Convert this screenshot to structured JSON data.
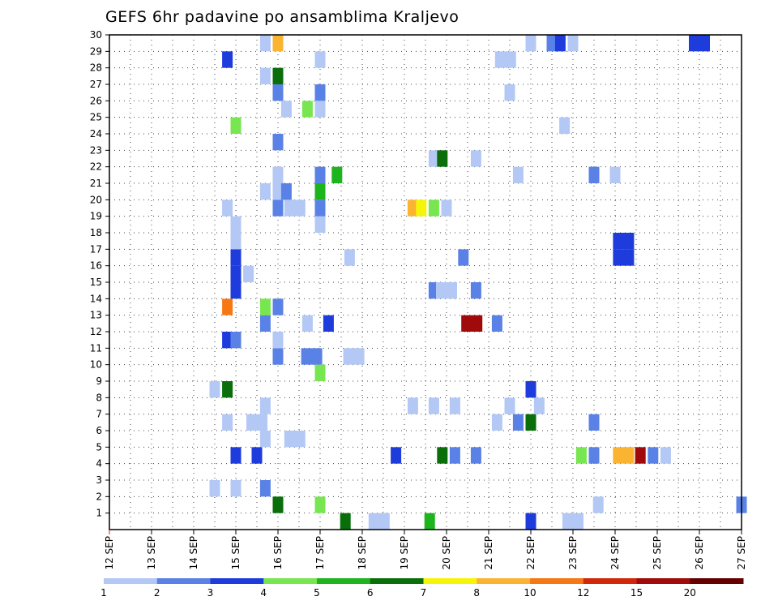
{
  "chart_data": {
    "type": "heatmap",
    "title": "GEFS 6hr padavine po ansamblima Kraljevo",
    "xlabel": "",
    "ylabel": "",
    "x_tick_labels": [
      "12 SEP",
      "13 SEP",
      "14 SEP",
      "15 SEP",
      "16 SEP",
      "17 SEP",
      "18 SEP",
      "19 SEP",
      "20 SEP",
      "21 SEP",
      "22 SEP",
      "23 SEP",
      "24 SEP",
      "25 SEP",
      "26 SEP",
      "27 SEP"
    ],
    "x_range_days": [
      12,
      27
    ],
    "y_tick_labels": [
      "1",
      "2",
      "3",
      "4",
      "5",
      "6",
      "7",
      "8",
      "9",
      "10",
      "11",
      "12",
      "13",
      "14",
      "15",
      "16",
      "17",
      "18",
      "19",
      "20",
      "21",
      "22",
      "23",
      "24",
      "25",
      "26",
      "27",
      "28",
      "29",
      "30"
    ],
    "y_range": [
      0,
      30
    ],
    "grid": true,
    "colorbar": {
      "placement": "bottom",
      "tick_labels": [
        "1",
        "2",
        "3",
        "4",
        "5",
        "6",
        "7",
        "8",
        "10",
        "12",
        "15",
        "20"
      ],
      "colors": [
        "#b4c8f5",
        "#5a82e6",
        "#1e3cdc",
        "#78e650",
        "#1eb41e",
        "#0a6e0a",
        "#f5f50a",
        "#fab432",
        "#f57814",
        "#d2280a",
        "#a00a0a",
        "#640000"
      ]
    },
    "cells": [
      {
        "day": 18.4,
        "member": 0,
        "level": 1,
        "w": 2
      },
      {
        "day": 17.6,
        "member": 0,
        "level": 6
      },
      {
        "day": 19.6,
        "member": 0,
        "level": 5
      },
      {
        "day": 22.0,
        "member": 0,
        "level": 3
      },
      {
        "day": 23.0,
        "member": 0,
        "level": 1,
        "w": 2
      },
      {
        "day": 16.0,
        "member": 1,
        "level": 6
      },
      {
        "day": 17.0,
        "member": 1,
        "level": 4
      },
      {
        "day": 23.6,
        "member": 1,
        "level": 1
      },
      {
        "day": 27.0,
        "member": 1,
        "level": 2
      },
      {
        "day": 14.5,
        "member": 2,
        "level": 1
      },
      {
        "day": 15.0,
        "member": 2,
        "level": 1
      },
      {
        "day": 15.7,
        "member": 2,
        "level": 2
      },
      {
        "day": 15.0,
        "member": 4,
        "level": 3
      },
      {
        "day": 15.5,
        "member": 4,
        "level": 3
      },
      {
        "day": 18.8,
        "member": 4,
        "level": 3
      },
      {
        "day": 19.9,
        "member": 4,
        "level": 6
      },
      {
        "day": 20.2,
        "member": 4,
        "level": 2
      },
      {
        "day": 20.7,
        "member": 4,
        "level": 2
      },
      {
        "day": 23.2,
        "member": 4,
        "level": 4
      },
      {
        "day": 23.5,
        "member": 4,
        "level": 2
      },
      {
        "day": 24.2,
        "member": 4,
        "level": 8,
        "w": 2
      },
      {
        "day": 24.6,
        "member": 4,
        "level": 11
      },
      {
        "day": 24.9,
        "member": 4,
        "level": 2
      },
      {
        "day": 25.2,
        "member": 4,
        "level": 1
      },
      {
        "day": 15.7,
        "member": 5,
        "level": 1
      },
      {
        "day": 16.4,
        "member": 5,
        "level": 1,
        "w": 2
      },
      {
        "day": 14.8,
        "member": 6,
        "level": 1
      },
      {
        "day": 15.5,
        "member": 6,
        "level": 1,
        "w": 2
      },
      {
        "day": 21.2,
        "member": 6,
        "level": 1
      },
      {
        "day": 21.7,
        "member": 6,
        "level": 2
      },
      {
        "day": 22.0,
        "member": 6,
        "level": 6
      },
      {
        "day": 23.5,
        "member": 6,
        "level": 2
      },
      {
        "day": 15.7,
        "member": 7,
        "level": 1
      },
      {
        "day": 19.2,
        "member": 7,
        "level": 1
      },
      {
        "day": 19.7,
        "member": 7,
        "level": 1
      },
      {
        "day": 20.2,
        "member": 7,
        "level": 1
      },
      {
        "day": 21.5,
        "member": 7,
        "level": 1
      },
      {
        "day": 22.2,
        "member": 7,
        "level": 1
      },
      {
        "day": 14.5,
        "member": 8,
        "level": 1
      },
      {
        "day": 14.8,
        "member": 8,
        "level": 6
      },
      {
        "day": 22.0,
        "member": 8,
        "level": 3
      },
      {
        "day": 17.0,
        "member": 9,
        "level": 4
      },
      {
        "day": 16.0,
        "member": 10,
        "level": 2
      },
      {
        "day": 16.8,
        "member": 10,
        "level": 2,
        "w": 2
      },
      {
        "day": 17.8,
        "member": 10,
        "level": 1,
        "w": 2
      },
      {
        "day": 16.0,
        "member": 11,
        "level": 1
      },
      {
        "day": 14.8,
        "member": 11,
        "level": 3
      },
      {
        "day": 15.0,
        "member": 11,
        "level": 2
      },
      {
        "day": 15.7,
        "member": 12,
        "level": 2
      },
      {
        "day": 16.7,
        "member": 12,
        "level": 1
      },
      {
        "day": 17.2,
        "member": 12,
        "level": 3
      },
      {
        "day": 20.6,
        "member": 12,
        "level": 11,
        "w": 2
      },
      {
        "day": 21.2,
        "member": 12,
        "level": 2
      },
      {
        "day": 14.8,
        "member": 13,
        "level": 9
      },
      {
        "day": 15.7,
        "member": 13,
        "level": 4
      },
      {
        "day": 16.0,
        "member": 13,
        "level": 2
      },
      {
        "day": 15.0,
        "member": 14,
        "level": 3
      },
      {
        "day": 19.7,
        "member": 14,
        "level": 2
      },
      {
        "day": 20.0,
        "member": 14,
        "level": 1,
        "w": 2
      },
      {
        "day": 20.7,
        "member": 14,
        "level": 2
      },
      {
        "day": 15.0,
        "member": 15,
        "level": 3
      },
      {
        "day": 15.3,
        "member": 15,
        "level": 1
      },
      {
        "day": 15.0,
        "member": 16,
        "level": 3
      },
      {
        "day": 17.7,
        "member": 16,
        "level": 1
      },
      {
        "day": 20.4,
        "member": 16,
        "level": 2
      },
      {
        "day": 24.2,
        "member": 16,
        "level": 3,
        "w": 2
      },
      {
        "day": 15.0,
        "member": 17,
        "level": 1
      },
      {
        "day": 24.2,
        "member": 17,
        "level": 3,
        "w": 2
      },
      {
        "day": 15.0,
        "member": 18,
        "level": 1
      },
      {
        "day": 17.0,
        "member": 18,
        "level": 1
      },
      {
        "day": 14.8,
        "member": 19,
        "level": 1
      },
      {
        "day": 16.0,
        "member": 19,
        "level": 2
      },
      {
        "day": 16.4,
        "member": 19,
        "level": 1,
        "w": 2
      },
      {
        "day": 17.0,
        "member": 19,
        "level": 2
      },
      {
        "day": 19.2,
        "member": 19,
        "level": 8
      },
      {
        "day": 19.4,
        "member": 19,
        "level": 7
      },
      {
        "day": 19.7,
        "member": 19,
        "level": 4
      },
      {
        "day": 20.0,
        "member": 19,
        "level": 1
      },
      {
        "day": 15.7,
        "member": 20,
        "level": 1
      },
      {
        "day": 16.0,
        "member": 20,
        "level": 1
      },
      {
        "day": 16.2,
        "member": 20,
        "level": 2
      },
      {
        "day": 17.0,
        "member": 20,
        "level": 5
      },
      {
        "day": 16.0,
        "member": 21,
        "level": 1
      },
      {
        "day": 17.0,
        "member": 21,
        "level": 2
      },
      {
        "day": 17.4,
        "member": 21,
        "level": 5
      },
      {
        "day": 21.7,
        "member": 21,
        "level": 1
      },
      {
        "day": 23.5,
        "member": 21,
        "level": 2
      },
      {
        "day": 24.0,
        "member": 21,
        "level": 1
      },
      {
        "day": 19.7,
        "member": 22,
        "level": 1
      },
      {
        "day": 19.9,
        "member": 22,
        "level": 6
      },
      {
        "day": 20.7,
        "member": 22,
        "level": 1
      },
      {
        "day": 16.0,
        "member": 23,
        "level": 2
      },
      {
        "day": 22.8,
        "member": 24,
        "level": 1
      },
      {
        "day": 15.0,
        "member": 24,
        "level": 4
      },
      {
        "day": 16.2,
        "member": 25,
        "level": 1
      },
      {
        "day": 16.7,
        "member": 25,
        "level": 4
      },
      {
        "day": 17.0,
        "member": 25,
        "level": 1
      },
      {
        "day": 16.0,
        "member": 26,
        "level": 2
      },
      {
        "day": 17.0,
        "member": 26,
        "level": 2
      },
      {
        "day": 21.5,
        "member": 26,
        "level": 1
      },
      {
        "day": 15.7,
        "member": 27,
        "level": 1
      },
      {
        "day": 16.0,
        "member": 27,
        "level": 6
      },
      {
        "day": 14.8,
        "member": 28,
        "level": 3
      },
      {
        "day": 17.0,
        "member": 28,
        "level": 1
      },
      {
        "day": 21.4,
        "member": 28,
        "level": 1,
        "w": 2
      },
      {
        "day": 15.7,
        "member": 29,
        "level": 1
      },
      {
        "day": 16.0,
        "member": 29,
        "level": 8
      },
      {
        "day": 22.0,
        "member": 29,
        "level": 1
      },
      {
        "day": 22.5,
        "member": 29,
        "level": 2
      },
      {
        "day": 22.7,
        "member": 29,
        "level": 3
      },
      {
        "day": 23.0,
        "member": 29,
        "level": 1
      },
      {
        "day": 26.0,
        "member": 29,
        "level": 3,
        "w": 2
      }
    ]
  }
}
